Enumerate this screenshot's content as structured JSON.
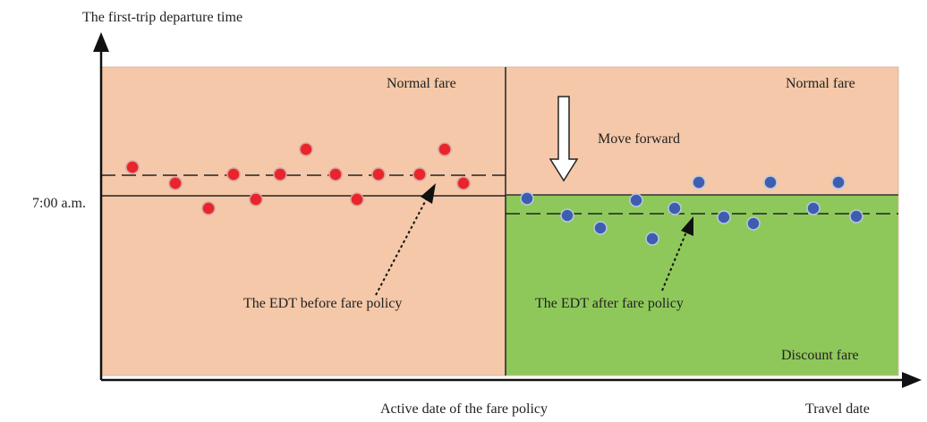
{
  "y_axis_label": "The first-trip departure time",
  "y_mark_label": "7:00 a.m.",
  "regions": {
    "before_top": "Normal fare",
    "after_top": "Normal fare",
    "after_bottom": "Discount fare"
  },
  "annotations": {
    "shift": "Move forward",
    "edt_before": "The EDT before fare policy",
    "edt_after": "The EDT after fare policy"
  },
  "x_axis": {
    "active_date": "Active date of the fare policy",
    "label": "Travel date"
  }
}
